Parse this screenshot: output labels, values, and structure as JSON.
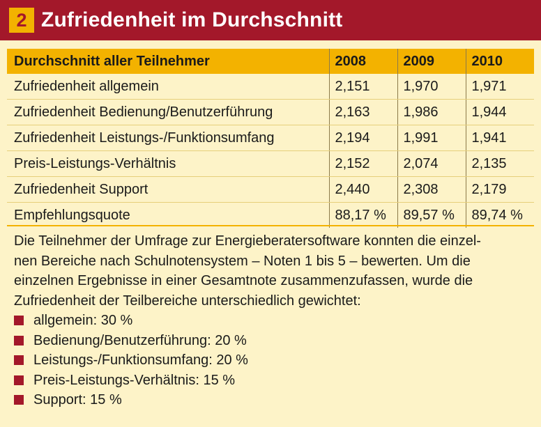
{
  "header": {
    "number": "2",
    "title": "Zufriedenheit im Durchschnitt"
  },
  "table": {
    "columns": [
      "Durchschnitt aller Teilnehmer",
      "2008",
      "2009",
      "2010"
    ],
    "rows": [
      {
        "label": "Zufriedenheit allgemein",
        "v2008": "2,151",
        "v2009": "1,970",
        "v2010": "1,971"
      },
      {
        "label": "Zufriedenheit Bedienung/Benutzerführung",
        "v2008": "2,163",
        "v2009": "1,986",
        "v2010": "1,944"
      },
      {
        "label": "Zufriedenheit Leistungs-/Funktionsumfang",
        "v2008": "2,194",
        "v2009": "1,991",
        "v2010": "1,941"
      },
      {
        "label": "Preis-Leistungs-Verhältnis",
        "v2008": "2,152",
        "v2009": "2,074",
        "v2010": "2,135"
      },
      {
        "label": "Zufriedenheit Support",
        "v2008": "2,440",
        "v2009": "2,308",
        "v2010": "2,179"
      },
      {
        "label": "Empfehlungsquote",
        "v2008": "88,17 %",
        "v2009": "89,57 %",
        "v2010": "89,74 %"
      }
    ]
  },
  "note": {
    "lines": [
      "Die Teilnehmer der Umfrage zur Energieberatersoftware konnten die einzel-",
      "nen Bereiche nach Schulnotensystem – Noten 1 bis 5 – bewerten. Um die",
      "einzelnen Ergebnisse in einer Gesamtnote zusammenzufassen, wurde die",
      "Zufriedenheit der Teilbereiche unterschiedlich gewichtet:"
    ],
    "weights": [
      "allgemein: 30 %",
      "Bedienung/Benutzerführung: 20 %",
      "Leistungs-/Funktionsumfang: 20 %",
      "Preis-Leistungs-Verhältnis: 15 %",
      "Support: 15 %"
    ]
  },
  "colors": {
    "header_bg": "#a3182a",
    "badge_bg": "#f3b200",
    "table_header_bg": "#f3b200",
    "page_bg": "#fdf3c8",
    "bullet": "#a3182a"
  }
}
